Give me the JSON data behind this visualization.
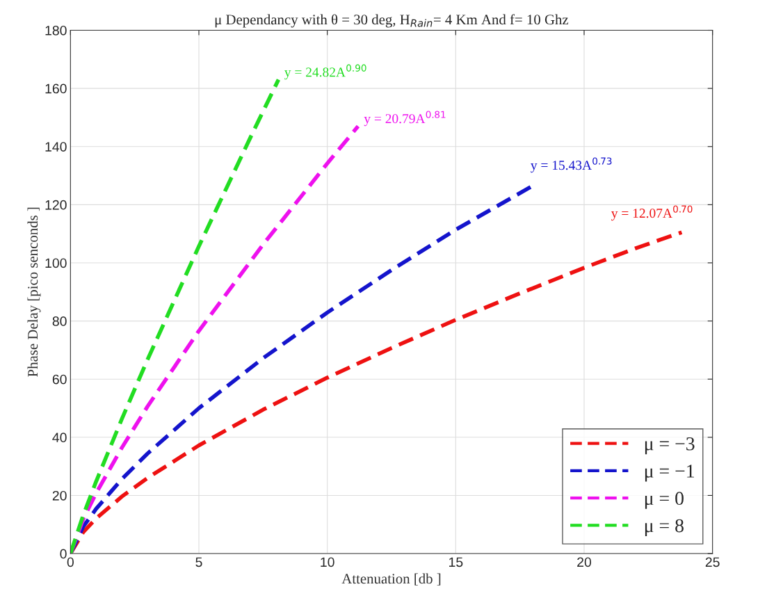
{
  "chart_data": {
    "type": "line",
    "title": "μ Dependancy with θ = 30 deg, H$_{Rain}$= 4 Km And f= 10 Ghz",
    "xlabel": "Attenuation [db ]",
    "ylabel": "Phase Delay [pico senconds ]",
    "series": [
      {
        "name": "μ = −3",
        "color": "#ee1111",
        "x": [
          0,
          0.5,
          1,
          2,
          3,
          5,
          7.5,
          10,
          12.5,
          15,
          17.5,
          20,
          22,
          23.8
        ],
        "values": [
          0,
          7.4,
          12.1,
          19.6,
          26.0,
          37.2,
          49.5,
          60.5,
          70.7,
          80.4,
          89.5,
          98.3,
          105.0,
          110.5
        ]
      },
      {
        "name": "μ = −1",
        "color": "#1414cc",
        "x": [
          0,
          0.5,
          1,
          2,
          3,
          5,
          7.5,
          10,
          12.5,
          15,
          18.1
        ],
        "values": [
          0,
          9.3,
          15.4,
          25.6,
          34.4,
          50.0,
          67.2,
          82.9,
          97.5,
          111.4,
          127
        ]
      },
      {
        "name": "μ = 0",
        "color": "#ee11ee",
        "x": [
          0,
          0.5,
          1,
          2,
          3,
          5,
          7.5,
          10,
          11.2
        ],
        "values": [
          0,
          11.9,
          20.8,
          36.4,
          50.6,
          76.6,
          106.3,
          134.2,
          147
        ]
      },
      {
        "name": "μ = 8",
        "color": "#22dd22",
        "x": [
          0,
          0.5,
          1,
          2,
          3,
          5,
          7,
          8.1
        ],
        "values": [
          0,
          13.3,
          24.8,
          46.3,
          66.7,
          105.7,
          143.0,
          163
        ]
      }
    ],
    "annotations": [
      "y = 12.07A$^{0.70}$",
      "y = 15.43A$^{0.73}$",
      "y = 20.79A$^{0.81}$",
      "y = 24.82A$^{0.90}$"
    ],
    "xlim": [
      0,
      25
    ],
    "xticks": [
      0,
      5,
      10,
      15,
      20,
      25
    ],
    "ylim": [
      0,
      180
    ],
    "yticks": [
      0,
      20,
      40,
      60,
      80,
      100,
      120,
      140,
      160,
      180
    ],
    "grid": true,
    "legend": "bottom right",
    "line_style": "dashed",
    "marker": "none"
  }
}
